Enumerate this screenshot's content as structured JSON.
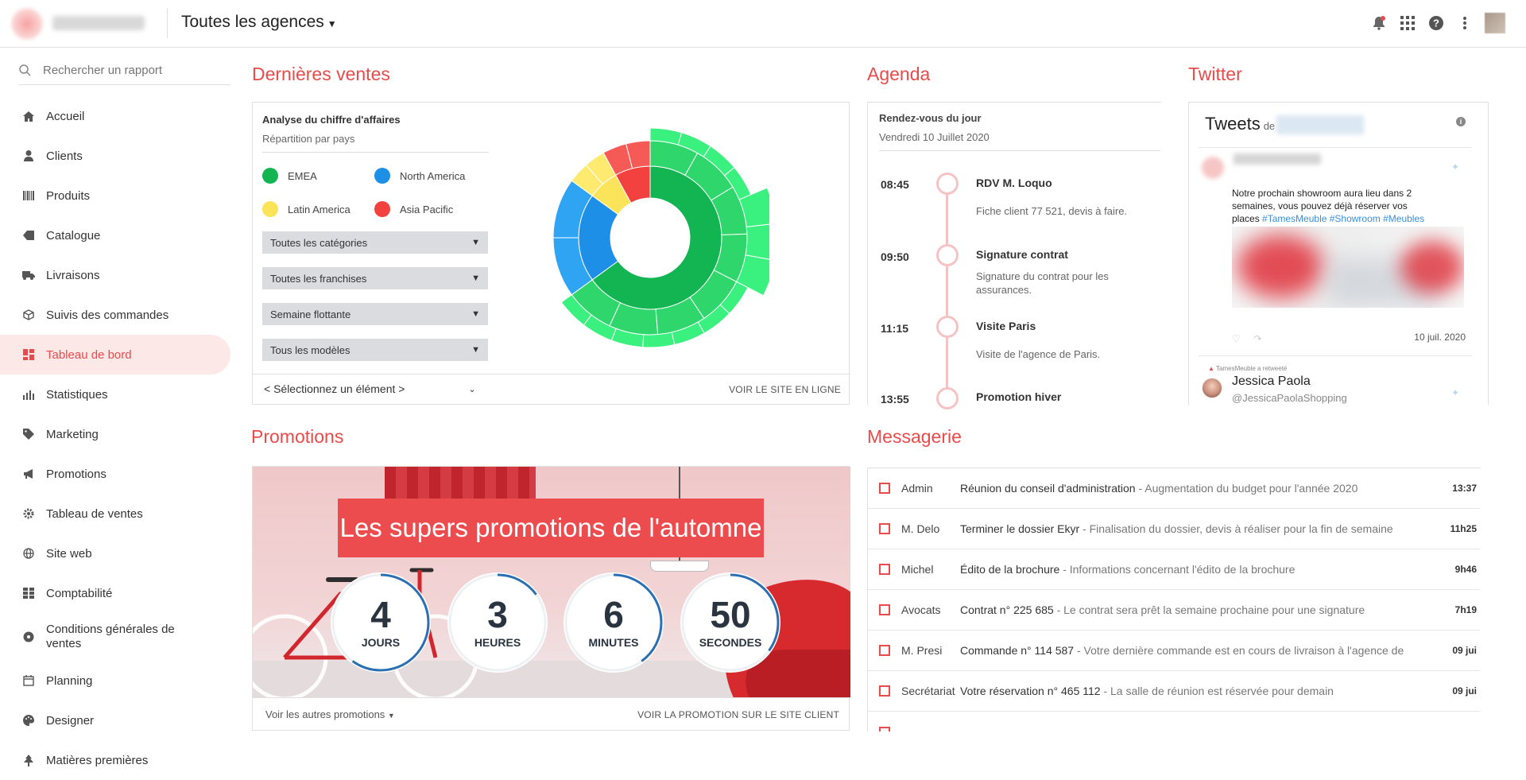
{
  "header": {
    "agency_label": "Toutes les agences"
  },
  "sidebar": {
    "search_placeholder": "Rechercher un rapport",
    "items": [
      {
        "label": "Accueil",
        "icon": "home-icon"
      },
      {
        "label": "Clients",
        "icon": "user-icon"
      },
      {
        "label": "Produits",
        "icon": "barcode-icon"
      },
      {
        "label": "Catalogue",
        "icon": "tag-icon"
      },
      {
        "label": "Livraisons",
        "icon": "truck-icon"
      },
      {
        "label": "Suivis des commandes",
        "icon": "box-icon"
      },
      {
        "label": "Tableau de bord",
        "icon": "dashboard-icon",
        "active": true
      },
      {
        "label": "Statistiques",
        "icon": "bar-chart-icon"
      },
      {
        "label": "Marketing",
        "icon": "label-icon"
      },
      {
        "label": "Promotions",
        "icon": "megaphone-icon"
      },
      {
        "label": "Tableau de ventes",
        "icon": "gear-icon"
      },
      {
        "label": "Site web",
        "icon": "globe-icon"
      },
      {
        "label": "Comptabilité",
        "icon": "grid-icon"
      },
      {
        "label": "Conditions générales de ventes",
        "icon": "disc-icon"
      },
      {
        "label": "Planning",
        "icon": "calendar-icon"
      },
      {
        "label": "Designer",
        "icon": "palette-icon"
      },
      {
        "label": "Matières premières",
        "icon": "tree-icon"
      }
    ]
  },
  "ventes": {
    "section_title": "Dernières ventes",
    "card_title": "Analyse du chiffre d'affaires",
    "card_subtitle": "Répartition par pays",
    "legend": [
      {
        "label": "EMEA",
        "color": "#13b553"
      },
      {
        "label": "North America",
        "color": "#1e8fe6"
      },
      {
        "label": "Latin America",
        "color": "#fbe45a"
      },
      {
        "label": "Asia Pacific",
        "color": "#f2413e"
      }
    ],
    "filters": [
      "Toutes les catégories",
      "Toutes les franchises",
      "Semaine flottante",
      "Tous les modèles"
    ],
    "element_select": "< Sélectionnez un élément >",
    "link": "VOIR LE SITE EN LIGNE"
  },
  "chart_data": {
    "type": "sunburst",
    "categories": [
      "EMEA",
      "North America",
      "Latin America",
      "Asia Pacific"
    ],
    "values": [
      65,
      20,
      7,
      8
    ]
  },
  "agenda": {
    "section_title": "Agenda",
    "title": "Rendez-vous du jour",
    "date": "Vendredi 10 Juillet 2020",
    "events": [
      {
        "time": "08:45",
        "title": "RDV M. Loquo",
        "desc": "Fiche client 77 521, devis à faire."
      },
      {
        "time": "09:50",
        "title": "Signature contrat",
        "desc": "Signature du contrat pour les assurances."
      },
      {
        "time": "11:15",
        "title": "Visite Paris",
        "desc": "Visite de l'agence de Paris."
      },
      {
        "time": "13:55",
        "title": "Promotion hiver",
        "desc": ""
      }
    ]
  },
  "twitter": {
    "section_title": "Twitter",
    "header": "Tweets",
    "header_de": "de",
    "tweet_text": "Notre prochain showroom aura lieu dans 2 semaines, vous pouvez déjà réserver vos places",
    "tweet_tags": "#TamesMeuble #Showroom #Meubles",
    "tweet_date": "10 juil. 2020",
    "retweet_label": "TamesMeuble a retweeté",
    "retweet_name": "Jessica Paola",
    "retweet_handle": "@JessicaPaolaShopping"
  },
  "promotions": {
    "section_title": "Promotions",
    "banner": "Les supers promotions de l'automne",
    "counters": [
      {
        "value": "4",
        "label": "JOURS",
        "fraction": 0.6
      },
      {
        "value": "3",
        "label": "HEURES",
        "fraction": 0.15
      },
      {
        "value": "6",
        "label": "MINUTES",
        "fraction": 0.4
      },
      {
        "value": "50",
        "label": "SECONDES",
        "fraction": 0.35
      }
    ],
    "more_link": "Voir les autres promotions",
    "site_link": "VOIR LA PROMOTION SUR LE SITE CLIENT"
  },
  "messagerie": {
    "section_title": "Messagerie",
    "messages": [
      {
        "from": "Admin",
        "subject": "Réunion du conseil d'administration",
        "preview": " - Augmentation du budget pour l'année 2020",
        "time": "13:37"
      },
      {
        "from": "M. Delo",
        "subject": "Terminer le dossier Ekyr",
        "preview": " - Finalisation du dossier, devis à réaliser pour la fin de semaine",
        "time": "11h25"
      },
      {
        "from": "Michel",
        "subject": "Édito de la brochure",
        "preview": " - Informations concernant l'édito de la brochure",
        "time": "9h46"
      },
      {
        "from": "Avocats",
        "subject": "Contrat n° 225 685",
        "preview": " - Le contrat sera prêt la semaine prochaine pour une signature",
        "time": "7h19"
      },
      {
        "from": "M. Presi",
        "subject": "Commande n° 114 587",
        "preview": " - Votre dernière commande est en cours de livraison à l'agence de",
        "time": "09 jui"
      },
      {
        "from": "Secrétariat",
        "subject": "Votre réservation n° 465 112",
        "preview": " - La salle de réunion est réservée pour demain",
        "time": "09 jui"
      }
    ]
  }
}
